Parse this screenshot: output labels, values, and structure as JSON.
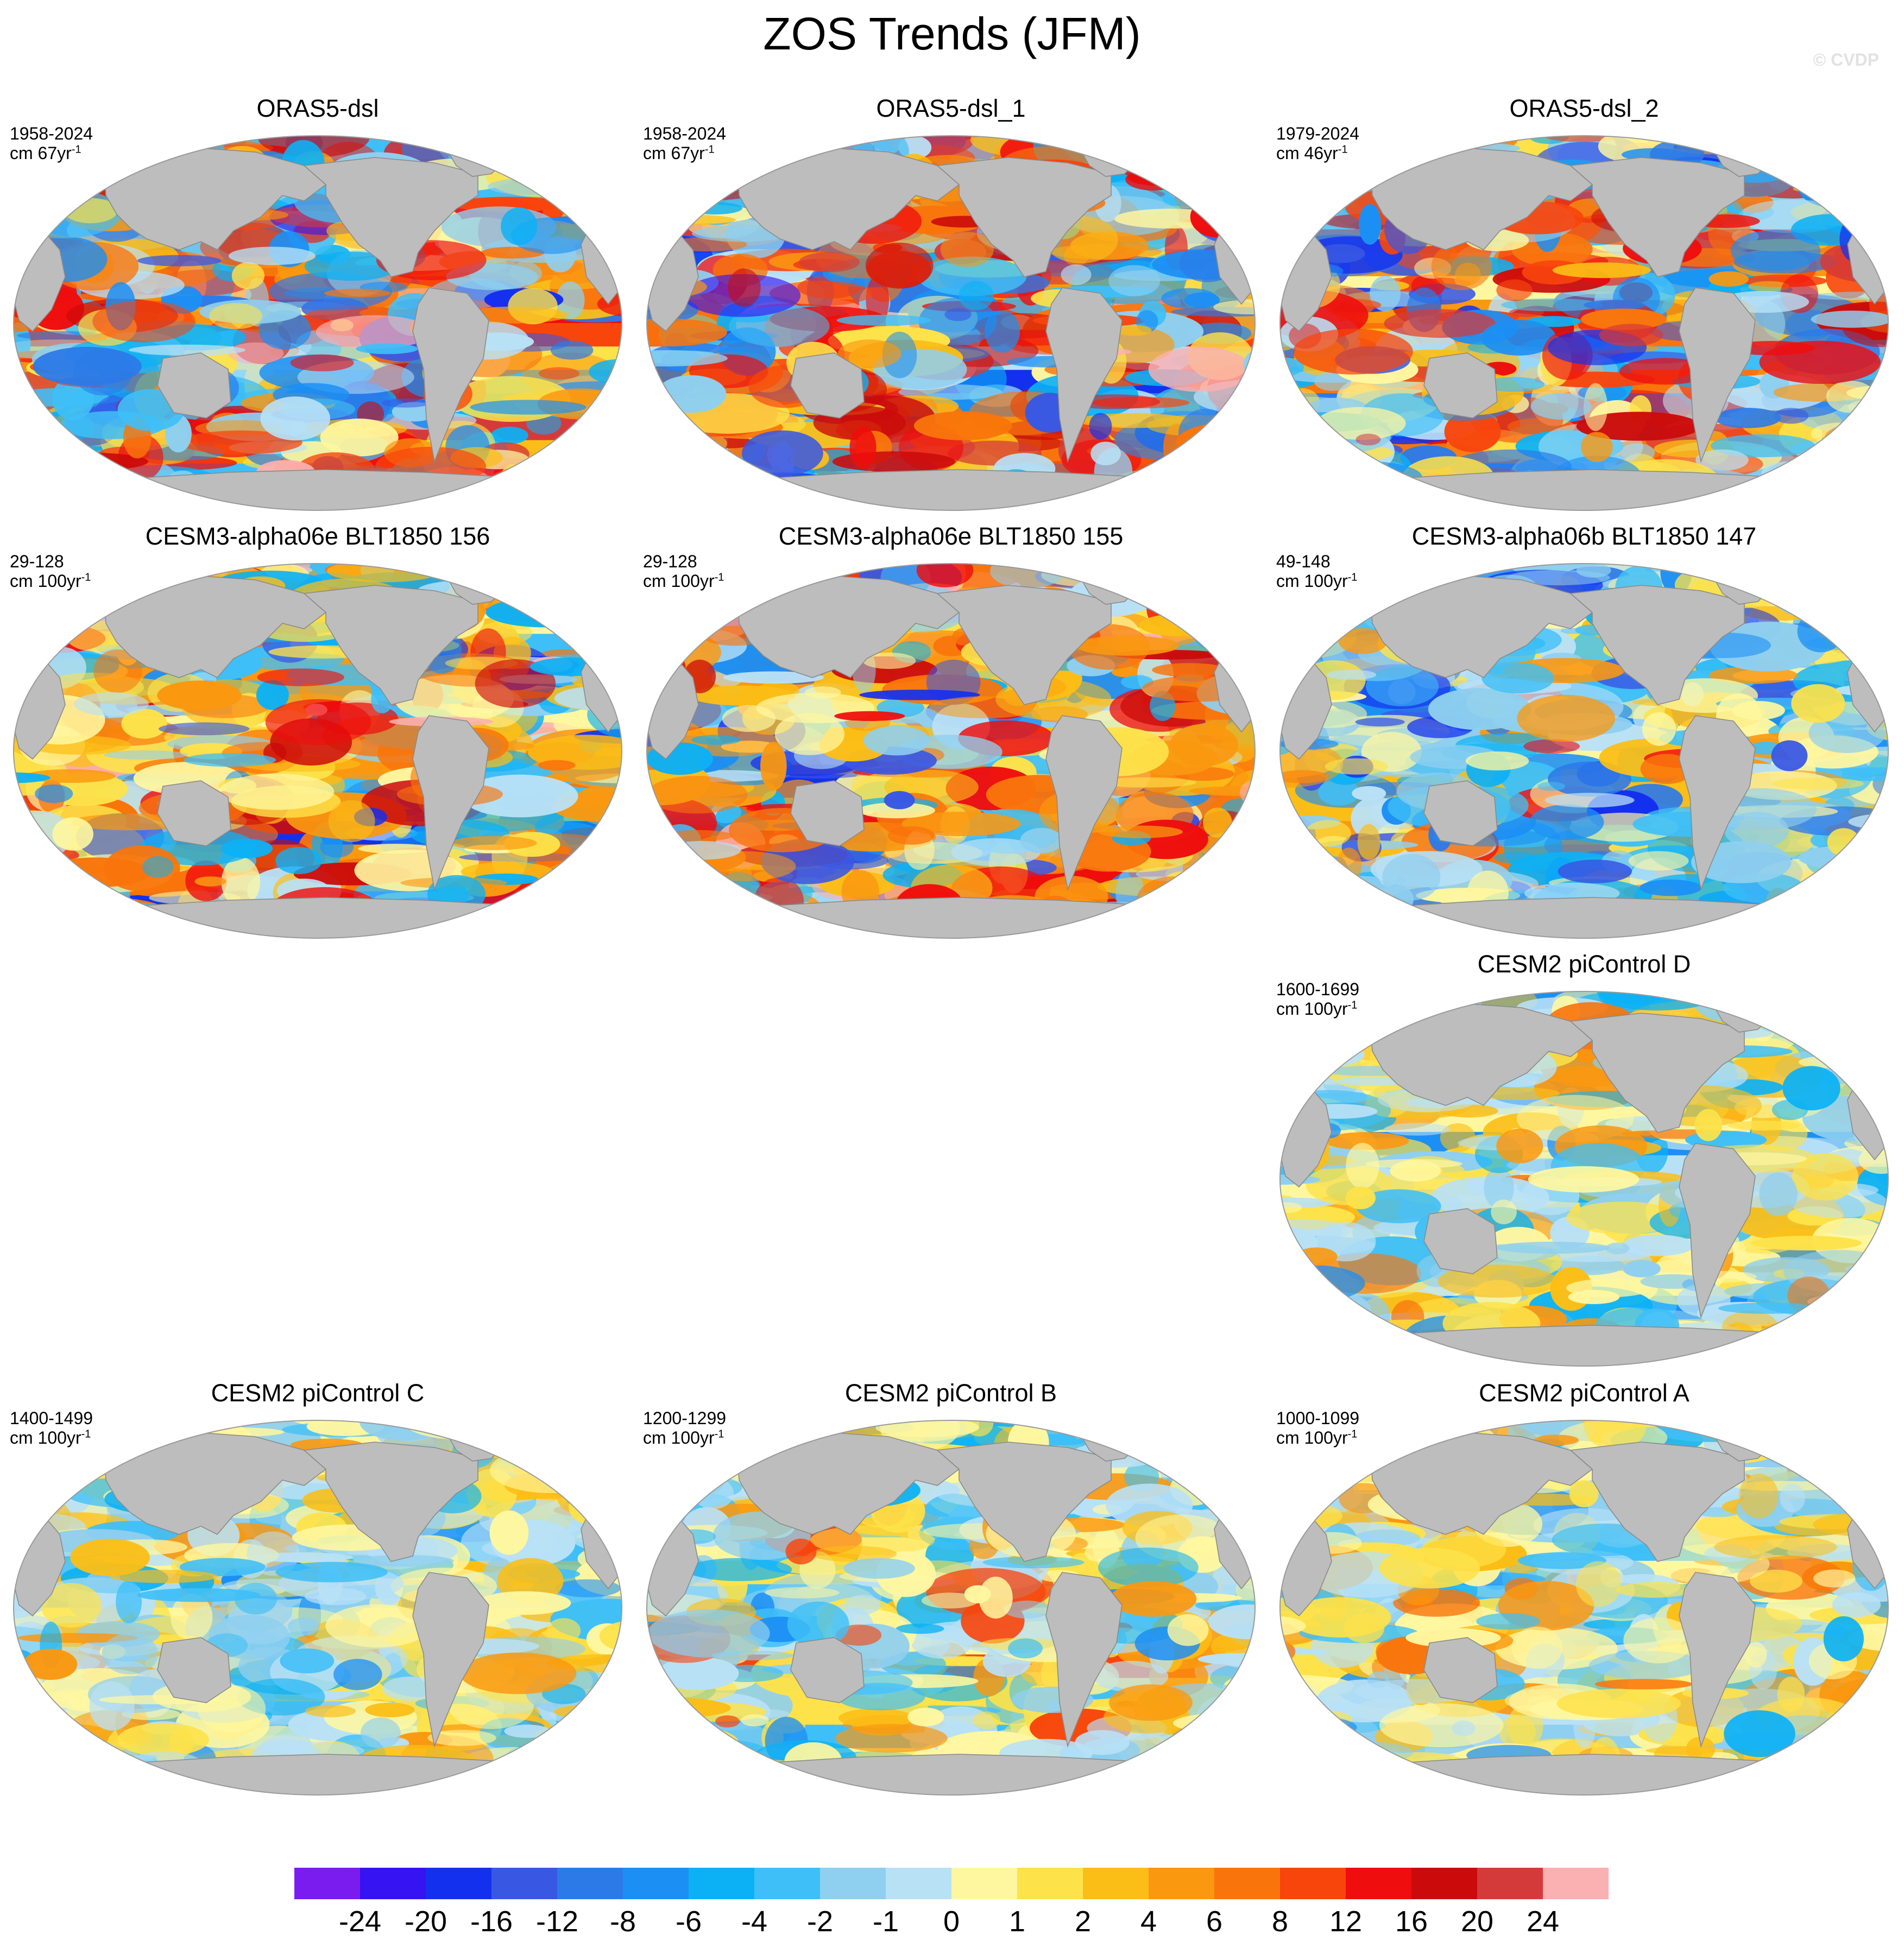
{
  "figure": {
    "title": "ZOS Trends (JFM)",
    "watermark": "© CVDP"
  },
  "colors": {
    "land": "#bdbdbd",
    "ice": "#ffffff",
    "coastline": "#8a8a8a",
    "border": "#9a9a9a"
  },
  "colorbar": {
    "labels": [
      "-24",
      "-20",
      "-16",
      "-12",
      "-8",
      "-6",
      "-4",
      "-2",
      "-1",
      "0",
      "1",
      "2",
      "4",
      "6",
      "8",
      "12",
      "16",
      "20",
      "24"
    ],
    "colors": [
      "#7a1cf0",
      "#3513f2",
      "#1430ef",
      "#3858e4",
      "#2c7ae8",
      "#1c8ff4",
      "#0cb1f5",
      "#3fbff7",
      "#8fcfef",
      "#b9e1f6",
      "#fff7a0",
      "#fde24a",
      "#fbbe17",
      "#fa9810",
      "#f9750c",
      "#f8450c",
      "#ef0d0d",
      "#cb0b0b",
      "#d53a3a",
      "#fbb0b2"
    ]
  },
  "panels": [
    {
      "title": "ORAS5-dsl",
      "period": "1958-2024",
      "units": "cm 67yr",
      "units_exp": "-1",
      "pattern": "oras5"
    },
    {
      "title": "ORAS5-dsl_1",
      "period": "1958-2024",
      "units": "cm 67yr",
      "units_exp": "-1",
      "pattern": "oras5"
    },
    {
      "title": "ORAS5-dsl_2",
      "period": "1979-2024",
      "units": "cm 46yr",
      "units_exp": "-1",
      "pattern": "oras5b"
    },
    {
      "title": "CESM3-alpha06e BLT1850 156",
      "period": "29-128",
      "units": "cm 100yr",
      "units_exp": "-1",
      "pattern": "cesm3pos"
    },
    {
      "title": "CESM3-alpha06e BLT1850 155",
      "period": "29-128",
      "units": "cm 100yr",
      "units_exp": "-1",
      "pattern": "cesm3pos2"
    },
    {
      "title": "CESM3-alpha06b BLT1850 147",
      "period": "49-148",
      "units": "cm 100yr",
      "units_exp": "-1",
      "pattern": "cesm3neg"
    },
    {
      "title": "CESM2 piControl D",
      "period": "1600-1699",
      "units": "cm 100yr",
      "units_exp": "-1",
      "pattern": "pictl"
    },
    {
      "title": "CESM2 piControl C",
      "period": "1400-1499",
      "units": "cm 100yr",
      "units_exp": "-1",
      "pattern": "pictl"
    },
    {
      "title": "CESM2 piControl B",
      "period": "1200-1299",
      "units": "cm 100yr",
      "units_exp": "-1",
      "pattern": "pictlb"
    },
    {
      "title": "CESM2 piControl A",
      "period": "1000-1099",
      "units": "cm 100yr",
      "units_exp": "-1",
      "pattern": "pictl"
    }
  ]
}
